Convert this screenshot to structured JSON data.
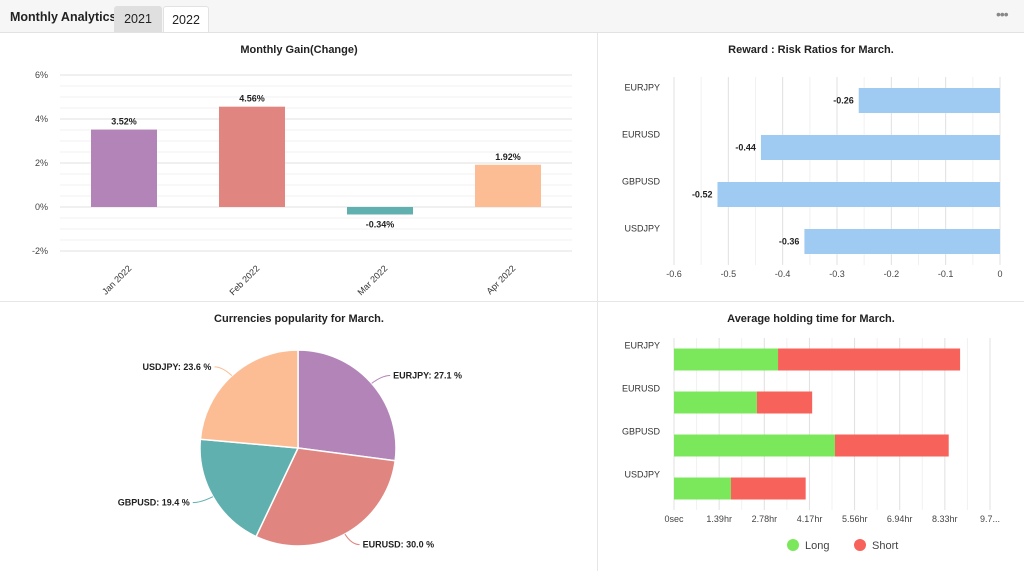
{
  "header": {
    "title": "Monthly Analytics",
    "tabs": [
      {
        "label": "2021",
        "selected": false
      },
      {
        "label": "2022",
        "selected": true
      }
    ],
    "more_icon": "ellipsis-icon"
  },
  "chart_data": [
    {
      "type": "bar",
      "title": "Monthly Gain(Change)",
      "categories": [
        "Jan 2022",
        "Feb 2022",
        "Mar 2022",
        "Apr 2022"
      ],
      "values": [
        3.52,
        4.56,
        -0.34,
        1.92
      ],
      "value_labels": [
        "3.52%",
        "4.56%",
        "-0.34%",
        "1.92%"
      ],
      "colors": [
        "#b384b8",
        "#e0857f",
        "#5fb0ae",
        "#fcbd94"
      ],
      "ylim": [
        -2,
        6
      ],
      "yticks": [
        6,
        4,
        2,
        0,
        -2
      ],
      "ytick_labels": [
        "6%",
        "4%",
        "2%",
        "0%",
        "-2%"
      ],
      "grid": true
    },
    {
      "type": "bar",
      "orientation": "horizontal",
      "title": "Reward : Risk Ratios for March.",
      "categories": [
        "EURJPY",
        "EURUSD",
        "GBPUSD",
        "USDJPY"
      ],
      "values": [
        -0.26,
        -0.44,
        -0.52,
        -0.36
      ],
      "value_labels": [
        "-0.26",
        "-0.44",
        "-0.52",
        "-0.36"
      ],
      "color": "#9fcbf3",
      "xlim": [
        -0.6,
        0
      ],
      "xticks": [
        -0.6,
        -0.5,
        -0.4,
        -0.3,
        -0.2,
        -0.1,
        0
      ],
      "xtick_labels": [
        "-0.6",
        "-0.5",
        "-0.4",
        "-0.3",
        "-0.2",
        "-0.1",
        "0"
      ],
      "grid": true
    },
    {
      "type": "pie",
      "title": "Currencies popularity for March.",
      "slices": [
        {
          "label": "EURJPY: 27.1 %",
          "value": 27.1,
          "color": "#b384b8"
        },
        {
          "label": "EURUSD: 30.0 %",
          "value": 30.0,
          "color": "#e0857f"
        },
        {
          "label": "GBPUSD: 19.4 %",
          "value": 19.4,
          "color": "#5fb0ae"
        },
        {
          "label": "USDJPY: 23.6 %",
          "value": 23.6,
          "color": "#fcbd94"
        }
      ]
    },
    {
      "type": "bar",
      "orientation": "horizontal",
      "stacked": true,
      "title": "Average holding time for March.",
      "categories": [
        "EURJPY",
        "EURUSD",
        "GBPUSD",
        "USDJPY"
      ],
      "series": [
        {
          "name": "Long",
          "color": "#7be85c",
          "values": [
            3.2,
            2.55,
            4.95,
            1.75
          ]
        },
        {
          "name": "Short",
          "color": "#f7625a",
          "values": [
            5.6,
            1.7,
            3.5,
            2.3
          ]
        }
      ],
      "xlim": [
        0,
        9.72
      ],
      "xticks": [
        0,
        1.39,
        2.78,
        4.17,
        5.56,
        6.94,
        8.33,
        9.72
      ],
      "xtick_labels": [
        "0sec",
        "1.39hr",
        "2.78hr",
        "4.17hr",
        "5.56hr",
        "6.94hr",
        "8.33hr",
        "9.7..."
      ],
      "grid": true,
      "legend": "bottom"
    }
  ]
}
